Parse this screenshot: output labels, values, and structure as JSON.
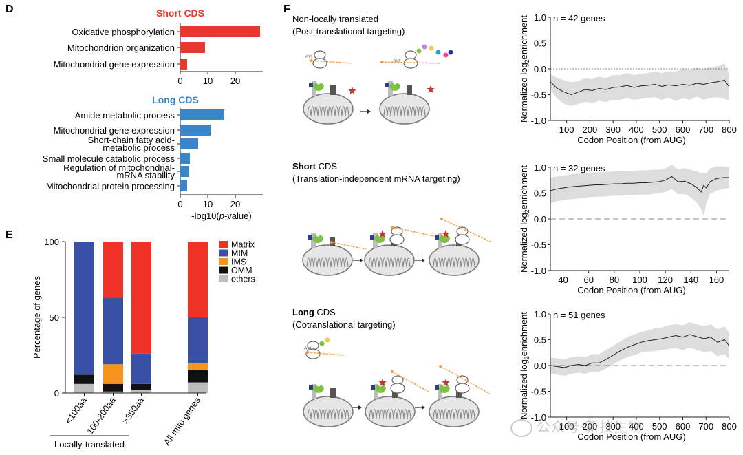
{
  "panels": {
    "D": {
      "letter": "D",
      "short_title": "Short CDS",
      "long_title": "Long CDS",
      "xlabel_prefix": "-log10(",
      "xlabel_italic": "p",
      "xlabel_suffix": "-value)"
    },
    "E": {
      "letter": "E"
    },
    "F": {
      "letter": "F",
      "rows": [
        {
          "title_plain": "Non-locally translated",
          "title_bold": "",
          "subtitle": "(Post-translational targeting)"
        },
        {
          "title_plain": " CDS",
          "title_bold": "Short",
          "subtitle": "(Translation-independent mRNA targeting)"
        },
        {
          "title_plain": " CDS",
          "title_bold": "Long",
          "subtitle": "(Cotranslational targeting)"
        }
      ],
      "ylabel_prefix": "Normalized log",
      "ylabel_sub": "2",
      "ylabel_suffix": "enrichment",
      "avi_label": "AVI"
    }
  },
  "colors": {
    "short_bar": "#e8372c",
    "long_bar": "#3a86c8",
    "matrix": "#ee3124",
    "mim": "#3a4fa6",
    "ims": "#f7941d",
    "omm": "#111111",
    "others": "#bcbcbc",
    "band": "#dddddd",
    "ribosome_green": "#7dc242",
    "star_red": "#c0392b",
    "mrna_orange": "#f39c3a"
  },
  "watermark": "公众号·新技生物",
  "chart_data": [
    {
      "id": "D-short",
      "type": "bar",
      "orientation": "horizontal",
      "title": "Short CDS",
      "categories": [
        "Oxidative phosphorylation",
        "Mitochondrion organization",
        "Mitochondrial gene expression"
      ],
      "values": [
        29,
        9,
        2.5
      ],
      "xlim": [
        0,
        30
      ],
      "xticks": [
        "0",
        "10",
        "20"
      ],
      "xticks_values": [
        0,
        10,
        20
      ]
    },
    {
      "id": "D-long",
      "type": "bar",
      "orientation": "horizontal",
      "title": "Long CDS",
      "categories": [
        "Amide metabolic process",
        "Mitochondrial gene expression",
        "Short-chain fatty acid-metabolic process",
        "Small molecule catabolic process",
        "Regulation of mitochondrial-mRNA stability",
        "Mitochondrial protein processing"
      ],
      "labels_lines": [
        [
          "Amide metabolic process"
        ],
        [
          "Mitochondrial gene expression"
        ],
        [
          "Short-chain fatty acid-",
          "metabolic process"
        ],
        [
          "Small molecule catabolic process"
        ],
        [
          "Regulation of mitochondrial-",
          "mRNA stability"
        ],
        [
          "Mitochondrial protein processing"
        ]
      ],
      "values": [
        16,
        11,
        6.5,
        3.5,
        3.2,
        2.5
      ],
      "xlim": [
        0,
        30
      ],
      "xticks": [
        "0",
        "10",
        "20"
      ],
      "xticks_values": [
        0,
        10,
        20
      ],
      "xlabel": "-log10(p-value)"
    },
    {
      "id": "E",
      "type": "bar",
      "stacked": true,
      "categories": [
        "<100aa",
        "100-200aa",
        ">350aa",
        "All mito genes"
      ],
      "group_label": "Locally-translated",
      "ylabel": "Percentage of genes",
      "ylim": [
        0,
        100
      ],
      "yticks": [
        "0",
        "50",
        "100"
      ],
      "yticks_values": [
        0,
        50,
        100
      ],
      "legend": [
        "Matrix",
        "MIM",
        "IMS",
        "OMM",
        "others"
      ],
      "series": [
        {
          "name": "others",
          "values": [
            6,
            1,
            2,
            7
          ]
        },
        {
          "name": "OMM",
          "values": [
            6,
            5,
            4,
            8
          ]
        },
        {
          "name": "IMS",
          "values": [
            0,
            13,
            0,
            5
          ]
        },
        {
          "name": "MIM",
          "values": [
            88,
            44,
            20,
            30
          ]
        },
        {
          "name": "Matrix",
          "values": [
            0,
            37,
            74,
            50
          ]
        }
      ]
    },
    {
      "id": "F-1",
      "type": "line",
      "annotation": "n = 42 genes",
      "xlabel": "Codon Position (from AUG)",
      "ylabel": "Normalized log2enrichment",
      "xlim": [
        30,
        800
      ],
      "ylim": [
        -1.0,
        1.0
      ],
      "xticks": [
        "100",
        "200",
        "300",
        "400",
        "500",
        "600",
        "700",
        "800"
      ],
      "xticks_values": [
        100,
        200,
        300,
        400,
        500,
        600,
        700,
        800
      ],
      "yticks": [
        "-1.0",
        "-0.5",
        "0.0",
        "0.5",
        "1.0"
      ],
      "yticks_values": [
        -1.0,
        -0.5,
        0.0,
        0.5,
        1.0
      ],
      "zero_line": "dotted",
      "x": [
        30,
        60,
        90,
        120,
        150,
        180,
        210,
        240,
        270,
        300,
        330,
        360,
        390,
        420,
        450,
        480,
        510,
        540,
        570,
        600,
        630,
        660,
        690,
        720,
        750,
        780,
        800
      ],
      "y": [
        -0.25,
        -0.38,
        -0.45,
        -0.5,
        -0.45,
        -0.4,
        -0.42,
        -0.38,
        -0.4,
        -0.36,
        -0.35,
        -0.32,
        -0.36,
        -0.33,
        -0.32,
        -0.3,
        -0.34,
        -0.31,
        -0.33,
        -0.3,
        -0.32,
        -0.28,
        -0.3,
        -0.27,
        -0.25,
        -0.22,
        -0.35
      ],
      "band_lower": [
        -0.4,
        -0.58,
        -0.68,
        -0.72,
        -0.68,
        -0.64,
        -0.66,
        -0.62,
        -0.64,
        -0.6,
        -0.6,
        -0.57,
        -0.6,
        -0.58,
        -0.56,
        -0.55,
        -0.6,
        -0.56,
        -0.62,
        -0.57,
        -0.6,
        -0.54,
        -0.6,
        -0.56,
        -0.55,
        -0.58,
        -0.62
      ],
      "band_upper": [
        -0.1,
        -0.18,
        -0.22,
        -0.26,
        -0.24,
        -0.18,
        -0.2,
        -0.15,
        -0.18,
        -0.12,
        -0.12,
        -0.08,
        -0.12,
        -0.1,
        -0.08,
        -0.05,
        -0.08,
        -0.05,
        -0.05,
        0.0,
        -0.02,
        0.02,
        0.0,
        0.03,
        0.05,
        0.1,
        -0.1
      ]
    },
    {
      "id": "F-2",
      "type": "line",
      "annotation": "n = 32 genes",
      "xlabel": "Codon Position (from AUG)",
      "ylabel": "Normalized log2enrichment",
      "xlim": [
        30,
        170
      ],
      "ylim": [
        -1.0,
        1.0
      ],
      "xticks": [
        "40",
        "60",
        "80",
        "100",
        "120",
        "140",
        "160"
      ],
      "xticks_values": [
        40,
        60,
        80,
        100,
        120,
        140,
        160
      ],
      "yticks": [
        "-1.0",
        "-0.5",
        "0.0",
        "0.5",
        "1.0"
      ],
      "yticks_values": [
        -1.0,
        -0.5,
        0.0,
        0.5,
        1.0
      ],
      "zero_line": "dashed",
      "x": [
        30,
        35,
        40,
        45,
        50,
        55,
        60,
        65,
        70,
        75,
        80,
        85,
        90,
        95,
        100,
        105,
        110,
        115,
        120,
        125,
        130,
        135,
        140,
        145,
        148,
        150,
        152,
        155,
        160,
        165,
        170
      ],
      "y": [
        0.55,
        0.58,
        0.6,
        0.62,
        0.63,
        0.64,
        0.65,
        0.66,
        0.66,
        0.67,
        0.68,
        0.68,
        0.69,
        0.69,
        0.7,
        0.7,
        0.71,
        0.72,
        0.75,
        0.82,
        0.72,
        0.73,
        0.68,
        0.6,
        0.52,
        0.65,
        0.6,
        0.72,
        0.78,
        0.8,
        0.8
      ],
      "band_lower": [
        0.3,
        0.34,
        0.36,
        0.38,
        0.39,
        0.4,
        0.42,
        0.43,
        0.43,
        0.44,
        0.45,
        0.45,
        0.46,
        0.46,
        0.47,
        0.47,
        0.48,
        0.5,
        0.52,
        0.58,
        0.48,
        0.48,
        0.42,
        0.3,
        0.2,
        0.05,
        0.3,
        0.48,
        0.55,
        0.58,
        0.6
      ],
      "band_upper": [
        0.8,
        0.82,
        0.84,
        0.86,
        0.87,
        0.88,
        0.89,
        0.9,
        0.9,
        0.91,
        0.92,
        0.92,
        0.93,
        0.93,
        0.94,
        0.94,
        0.95,
        0.95,
        0.98,
        1.05,
        0.96,
        0.98,
        0.95,
        0.92,
        0.88,
        0.9,
        0.88,
        0.98,
        1.02,
        1.02,
        1.0
      ]
    },
    {
      "id": "F-3",
      "type": "line",
      "annotation": "n = 51 genes",
      "xlabel": "Codon Position (from AUG)",
      "ylabel": "Normalized log2enrichment",
      "xlim": [
        30,
        800
      ],
      "ylim": [
        -1.0,
        1.0
      ],
      "xticks": [
        "100",
        "200",
        "300",
        "400",
        "500",
        "600",
        "700",
        "800"
      ],
      "xticks_values": [
        100,
        200,
        300,
        400,
        500,
        600,
        700,
        800
      ],
      "yticks": [
        "-1.0",
        "-0.5",
        "0.0",
        "0.5",
        "1.0"
      ],
      "yticks_values": [
        -1.0,
        -0.5,
        0.0,
        0.5,
        1.0
      ],
      "zero_line": "dashed",
      "x": [
        30,
        60,
        90,
        120,
        150,
        180,
        210,
        240,
        270,
        300,
        330,
        360,
        390,
        420,
        450,
        480,
        510,
        540,
        570,
        600,
        630,
        660,
        690,
        720,
        750,
        780,
        800
      ],
      "y": [
        0.0,
        -0.02,
        -0.04,
        0.0,
        0.02,
        0.0,
        0.05,
        0.05,
        0.12,
        0.2,
        0.28,
        0.35,
        0.4,
        0.45,
        0.48,
        0.5,
        0.52,
        0.55,
        0.58,
        0.55,
        0.6,
        0.56,
        0.52,
        0.55,
        0.45,
        0.5,
        0.38
      ],
      "band_lower": [
        -0.15,
        -0.18,
        -0.2,
        -0.16,
        -0.14,
        -0.16,
        -0.12,
        -0.12,
        -0.06,
        0.02,
        0.1,
        0.16,
        0.2,
        0.25,
        0.27,
        0.28,
        0.3,
        0.32,
        0.34,
        0.3,
        0.35,
        0.3,
        0.26,
        0.28,
        0.18,
        0.22,
        0.12
      ],
      "band_upper": [
        0.15,
        0.14,
        0.12,
        0.16,
        0.18,
        0.16,
        0.22,
        0.22,
        0.3,
        0.38,
        0.46,
        0.55,
        0.6,
        0.65,
        0.68,
        0.72,
        0.74,
        0.78,
        0.8,
        0.78,
        0.84,
        0.8,
        0.76,
        0.8,
        0.7,
        0.76,
        0.62
      ]
    }
  ]
}
